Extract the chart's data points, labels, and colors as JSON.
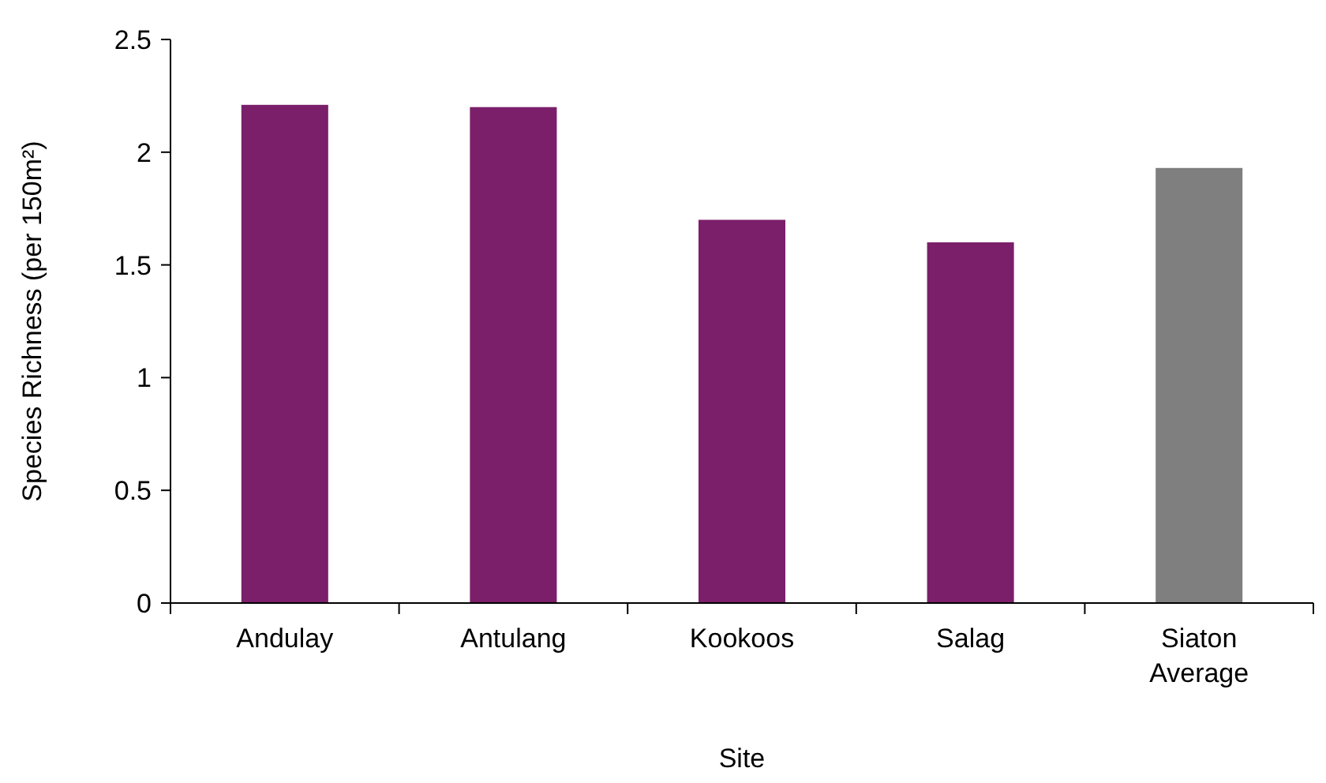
{
  "chart_data": {
    "type": "bar",
    "xlabel": "Site",
    "ylabel": "Species Richness (per 150m²)",
    "categories": [
      "Andulay",
      "Antulang",
      "Kookoos",
      "Salag",
      "Siaton Average"
    ],
    "values": [
      2.21,
      2.2,
      1.7,
      1.6,
      1.93
    ],
    "colors": [
      "#7b1f6a",
      "#7b1f6a",
      "#7b1f6a",
      "#7b1f6a",
      "#7f7f7f"
    ],
    "ylim": [
      0,
      2.5
    ],
    "yticks": [
      0,
      0.5,
      1,
      1.5,
      2,
      2.5
    ],
    "grid": false
  }
}
